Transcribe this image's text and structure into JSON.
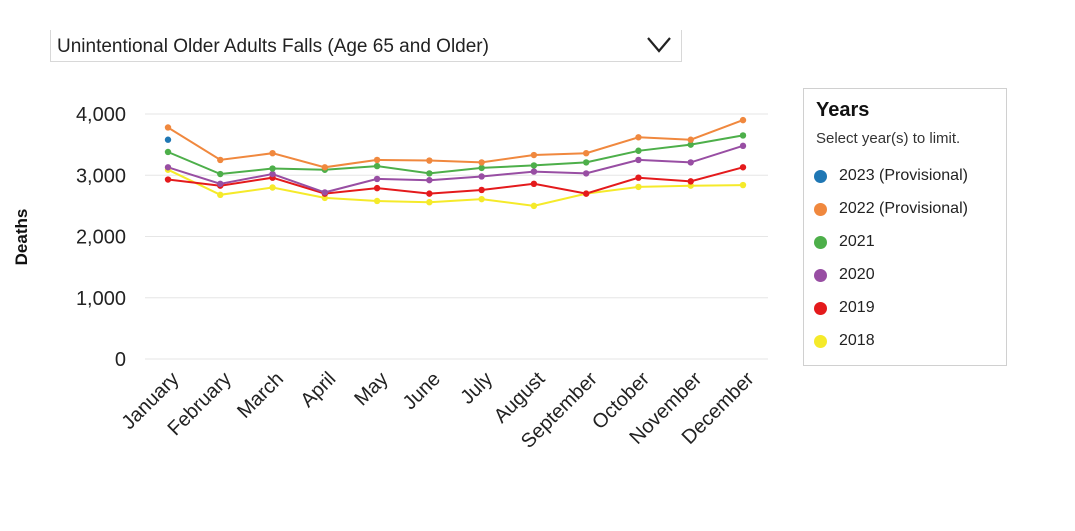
{
  "filter": {
    "selected": "Unintentional Older Adults Falls (Age 65 and Older)"
  },
  "legend": {
    "title": "Years",
    "subtitle": "Select year(s) to limit.",
    "items": [
      {
        "label": "2023 (Provisional)",
        "color": "#1f77b4"
      },
      {
        "label": "2022 (Provisional)",
        "color": "#f0883e"
      },
      {
        "label": "2021",
        "color": "#4daf4a"
      },
      {
        "label": "2020",
        "color": "#984ea3"
      },
      {
        "label": "2019",
        "color": "#e41a1c"
      },
      {
        "label": "2018",
        "color": "#f5ea2a"
      }
    ]
  },
  "chart_data": {
    "type": "line",
    "ylabel": "Deaths",
    "xlabel": "",
    "ylim": [
      0,
      4000
    ],
    "yticks": [
      "0",
      "1,000",
      "2,000",
      "3,000",
      "4,000"
    ],
    "ytick_values": [
      0,
      1000,
      2000,
      3000,
      4000
    ],
    "grid": true,
    "legend_position": "right",
    "categories": [
      "January",
      "February",
      "March",
      "April",
      "May",
      "June",
      "July",
      "August",
      "September",
      "October",
      "November",
      "December"
    ],
    "series": [
      {
        "name": "2023 (Provisional)",
        "color": "#1f77b4",
        "values": [
          3580,
          null,
          null,
          null,
          null,
          null,
          null,
          null,
          null,
          null,
          null,
          null
        ]
      },
      {
        "name": "2022 (Provisional)",
        "color": "#f0883e",
        "values": [
          3780,
          3250,
          3360,
          3130,
          3250,
          3240,
          3210,
          3330,
          3360,
          3620,
          3580,
          3900
        ]
      },
      {
        "name": "2021",
        "color": "#4daf4a",
        "values": [
          3380,
          3020,
          3110,
          3090,
          3150,
          3030,
          3120,
          3160,
          3210,
          3400,
          3500,
          3650
        ]
      },
      {
        "name": "2020",
        "color": "#984ea3",
        "values": [
          3130,
          2860,
          3020,
          2720,
          2940,
          2920,
          2980,
          3060,
          3030,
          3250,
          3210,
          3480
        ]
      },
      {
        "name": "2019",
        "color": "#e41a1c",
        "values": [
          2930,
          2830,
          2960,
          2700,
          2790,
          2700,
          2760,
          2860,
          2700,
          2960,
          2900,
          3130
        ]
      },
      {
        "name": "2018",
        "color": "#f5ea2a",
        "values": [
          3090,
          2680,
          2800,
          2630,
          2580,
          2560,
          2610,
          2500,
          2700,
          2810,
          2830,
          2840
        ]
      }
    ]
  }
}
